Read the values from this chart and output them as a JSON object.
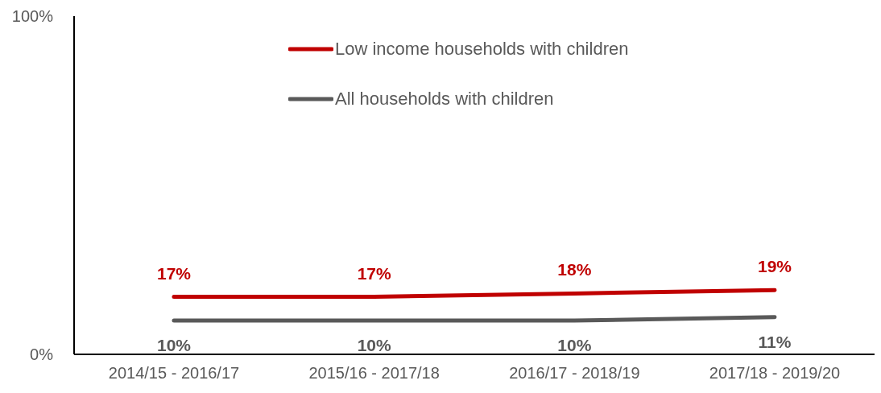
{
  "chart_data": {
    "type": "line",
    "categories": [
      "2014/15 - 2016/17",
      "2015/16 - 2017/18",
      "2016/17 - 2018/19",
      "2017/18 - 2019/20"
    ],
    "series": [
      {
        "name": "Low income households with children",
        "color": "#c00000",
        "values": [
          17,
          17,
          18,
          19
        ],
        "value_labels": [
          "17%",
          "17%",
          "18%",
          "19%"
        ]
      },
      {
        "name": "All households with children",
        "color": "#595959",
        "values": [
          10,
          10,
          10,
          11
        ],
        "value_labels": [
          "10%",
          "10%",
          "10%",
          "11%"
        ]
      }
    ],
    "ylim": [
      0,
      100
    ],
    "yticks": [
      {
        "value": 0,
        "label": "0%"
      },
      {
        "value": 100,
        "label": "100%"
      }
    ],
    "grid": false,
    "legend": "top",
    "marker": "none",
    "line_style": "solid"
  }
}
